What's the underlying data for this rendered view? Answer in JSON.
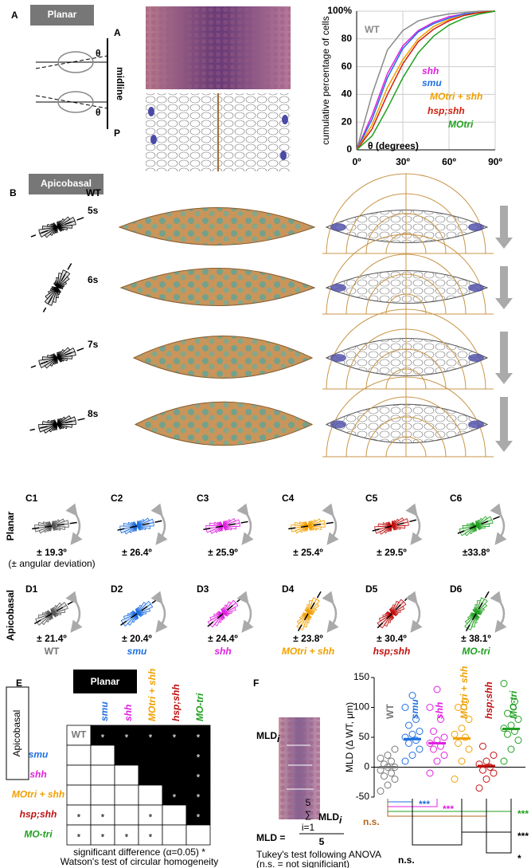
{
  "panel_a": {
    "letter": "A",
    "tag": "Planar",
    "axis_top": "A",
    "axis_bottom": "P",
    "midline": "midline",
    "theta": "θ",
    "chart": {
      "type": "line",
      "y_label": "cumulative percentage of cells",
      "x_label": "θ (degrees)",
      "x": [
        0,
        10,
        20,
        30,
        40,
        50,
        60,
        70,
        80,
        90
      ],
      "xlim": [
        0,
        90
      ],
      "xticks": [
        {
          "value": 0,
          "label": "0º"
        },
        {
          "value": 30,
          "label": "30º"
        },
        {
          "value": 60,
          "label": "60º"
        },
        {
          "value": 90,
          "label": "90º"
        }
      ],
      "ylim": [
        0,
        100
      ],
      "yticks": [
        0,
        20,
        40,
        60,
        80,
        {
          "value": 100,
          "label": "100%"
        }
      ],
      "grid": true,
      "series": [
        {
          "name": "WT",
          "color": "#8a8a8a",
          "values": [
            0,
            40,
            72,
            86,
            93,
            96,
            98,
            99,
            100,
            100
          ]
        },
        {
          "name": "shh",
          "color": "#e020e0",
          "values": [
            0,
            25,
            55,
            75,
            86,
            92,
            96,
            98,
            99,
            100
          ]
        },
        {
          "name": "smu",
          "color": "#1e6fe0",
          "values": [
            0,
            22,
            52,
            73,
            85,
            91,
            95,
            98,
            99,
            100
          ]
        },
        {
          "name": "MOtri + shh",
          "color": "#f0a000",
          "values": [
            0,
            18,
            45,
            65,
            80,
            89,
            94,
            97,
            99,
            100
          ]
        },
        {
          "name": "hsp;shh",
          "color": "#d02010",
          "values": [
            0,
            15,
            40,
            62,
            78,
            87,
            93,
            97,
            99,
            100
          ]
        },
        {
          "name": "MOtri",
          "color": "#20a020",
          "values": [
            0,
            10,
            30,
            52,
            70,
            82,
            90,
            95,
            98,
            100
          ]
        }
      ]
    }
  },
  "panel_b": {
    "letter": "B",
    "tag": "Apicobasal",
    "genotype": "WT",
    "stages": [
      "5s",
      "6s",
      "7s",
      "8s"
    ]
  },
  "genotypes": [
    {
      "name": "WT",
      "color": "#777777"
    },
    {
      "name": "smu",
      "color": "#1e6fe0"
    },
    {
      "name": "shh",
      "color": "#e020e0"
    },
    {
      "name": "MOtri + shh",
      "color": "#f0a000"
    },
    {
      "name": "hsp;shh",
      "color": "#c01010"
    },
    {
      "name": "MO-tri",
      "color": "#20a020"
    }
  ],
  "panel_cd": {
    "rows": [
      "Planar",
      "Apicobasal"
    ],
    "note": "(± angular deviation)",
    "c": [
      {
        "label": "C1",
        "deviation": "± 19.3º"
      },
      {
        "label": "C2",
        "deviation": "± 26.4º"
      },
      {
        "label": "C3",
        "deviation": "± 25.9º"
      },
      {
        "label": "C4",
        "deviation": "± 25.4º"
      },
      {
        "label": "C5",
        "deviation": "± 29.5º"
      },
      {
        "label": "C6",
        "deviation": "±33.8º"
      }
    ],
    "d": [
      {
        "label": "D1",
        "deviation": "± 21.4º"
      },
      {
        "label": "D2",
        "deviation": "± 20.4º"
      },
      {
        "label": "D3",
        "deviation": "± 24.4º"
      },
      {
        "label": "D4",
        "deviation": "± 23.8º"
      },
      {
        "label": "D5",
        "deviation": "± 30.4º"
      },
      {
        "label": "D6",
        "deviation": "± 38.1º"
      }
    ]
  },
  "panel_e": {
    "letter": "E",
    "upper": "Planar",
    "lower": "Apicobasal",
    "star": "*",
    "significant": [
      [
        null,
        true,
        true,
        true,
        true,
        true
      ],
      [
        false,
        null,
        false,
        false,
        false,
        true
      ],
      [
        false,
        false,
        null,
        false,
        false,
        true
      ],
      [
        false,
        false,
        false,
        null,
        true,
        true
      ],
      [
        true,
        true,
        false,
        true,
        null,
        true
      ],
      [
        true,
        true,
        true,
        true,
        false,
        null
      ]
    ],
    "footnote": [
      "significant difference (α=0.05) *",
      "Watson's test of circular homogeneity"
    ]
  },
  "panel_f": {
    "letter": "F",
    "formula": {
      "term": "MLD",
      "sub": "i",
      "lhs": "MLD =",
      "top": "5",
      "sigma": "∑",
      "index": "i=1",
      "denominator": "5"
    },
    "test": "Tukey's test following ANOVA",
    "note": "(n.s. = not significiant)",
    "chart": {
      "type": "scatter",
      "y_label": "MLD (Δ WT, μm)",
      "ylim": [
        -50,
        150
      ],
      "yticks": [
        -50,
        0,
        50,
        100,
        150
      ],
      "points": [
        [
          -40,
          -30,
          -20,
          -15,
          -10,
          -5,
          0,
          0,
          5,
          10,
          15,
          20,
          30
        ],
        [
          10,
          20,
          30,
          40,
          45,
          50,
          55,
          60,
          70,
          80,
          100,
          120
        ],
        [
          -10,
          10,
          20,
          30,
          35,
          40,
          45,
          50,
          60,
          80,
          100,
          130
        ],
        [
          -20,
          10,
          30,
          40,
          50,
          55,
          65,
          80,
          100,
          110
        ],
        [
          -35,
          -20,
          -10,
          -5,
          0,
          5,
          10,
          20,
          35
        ],
        [
          10,
          30,
          45,
          55,
          60,
          65,
          70,
          80,
          90,
          110,
          140
        ]
      ],
      "means": [
        0,
        47,
        40,
        48,
        2,
        64
      ],
      "stats": [
        {
          "label": "***",
          "color": "#1e6fe0"
        },
        {
          "label": "***",
          "color": "#e020e0"
        },
        {
          "label": "***",
          "color": "#20a020"
        },
        {
          "label": "n.s.",
          "color": "#b5651d"
        },
        {
          "label": "***",
          "color": "#000000"
        },
        {
          "label": "n.s.",
          "color": "#000000"
        },
        {
          "label": "*",
          "color": "#000000"
        }
      ]
    }
  }
}
